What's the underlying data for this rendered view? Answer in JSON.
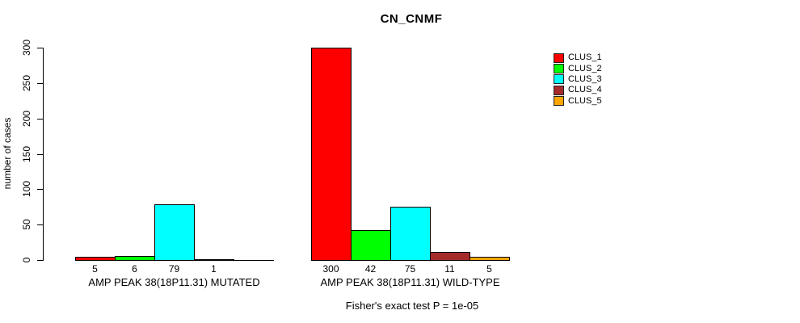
{
  "figure": {
    "title": "CN_CNMF",
    "footer": "Fisher's exact test P = 1e-05"
  },
  "chart_data": {
    "type": "bar",
    "title": "CN_CNMF",
    "xlabel": "",
    "ylabel": "number of cases",
    "ylim": [
      0,
      300
    ],
    "yticks": [
      0,
      50,
      100,
      150,
      200,
      250,
      300
    ],
    "grid": false,
    "legend_position": "right",
    "categories": [
      "AMP PEAK 38(18P11.31) MUTATED",
      "AMP PEAK 38(18P11.31) WILD-TYPE"
    ],
    "series": [
      {
        "name": "CLUS_1",
        "color": "#FF0000",
        "values": [
          5,
          300
        ]
      },
      {
        "name": "CLUS_2",
        "color": "#00FF00",
        "values": [
          6,
          42
        ]
      },
      {
        "name": "CLUS_3",
        "color": "#00FFFF",
        "values": [
          79,
          75
        ]
      },
      {
        "name": "CLUS_4",
        "color": "#A52A2A",
        "values": [
          1,
          11
        ]
      },
      {
        "name": "CLUS_5",
        "color": "#FFA500",
        "values": [
          0,
          5
        ]
      }
    ],
    "bar_value_labels": [
      [
        "5",
        "6",
        "79",
        "1",
        ""
      ],
      [
        "300",
        "42",
        "75",
        "11",
        "5"
      ]
    ],
    "annotation": "Fisher's exact test P = 1e-05"
  }
}
